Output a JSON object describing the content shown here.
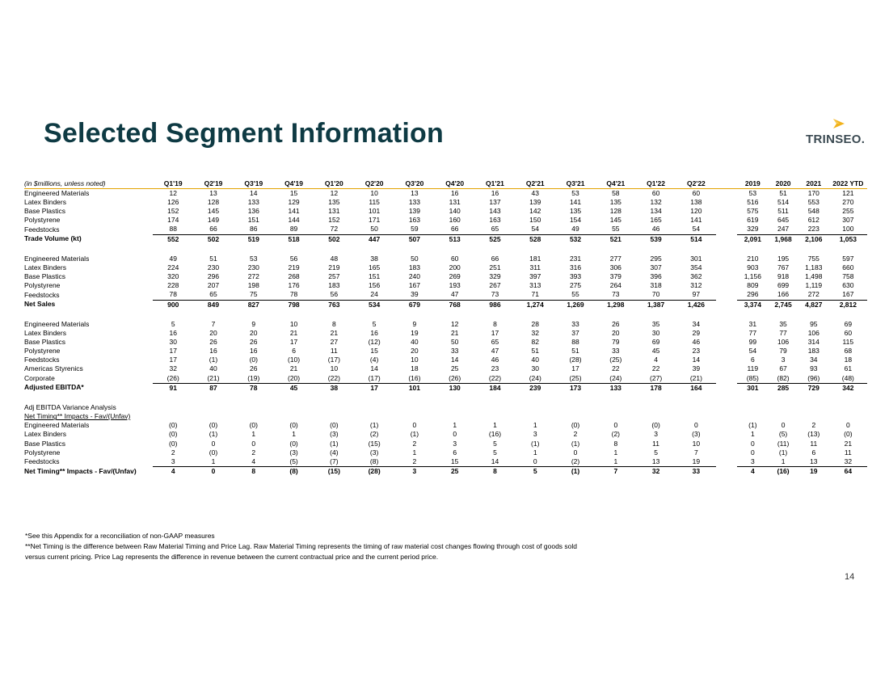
{
  "title": "Selected Segment Information",
  "logo_text": "TRINSEO.",
  "page_number": "14",
  "table": {
    "header_label": "(in $millions, unless noted)",
    "quarters": [
      "Q1'19",
      "Q2'19",
      "Q3'19",
      "Q4'19",
      "Q1'20",
      "Q2'20",
      "Q3'20",
      "Q4'20",
      "Q1'21",
      "Q2'21",
      "Q3'21",
      "Q4'21",
      "Q1'22",
      "Q2'22"
    ],
    "years": [
      "2019",
      "2020",
      "2021",
      "2022 YTD"
    ],
    "sections": [
      {
        "rows": [
          {
            "label": "Engineered Materials",
            "q": [
              "12",
              "13",
              "14",
              "15",
              "12",
              "10",
              "13",
              "16",
              "16",
              "43",
              "53",
              "58",
              "60",
              "60"
            ],
            "y": [
              "53",
              "51",
              "170",
              "121"
            ]
          },
          {
            "label": "Latex Binders",
            "q": [
              "126",
              "128",
              "133",
              "129",
              "135",
              "115",
              "133",
              "131",
              "137",
              "139",
              "141",
              "135",
              "132",
              "138"
            ],
            "y": [
              "516",
              "514",
              "553",
              "270"
            ]
          },
          {
            "label": "Base Plastics",
            "q": [
              "152",
              "145",
              "136",
              "141",
              "131",
              "101",
              "139",
              "140",
              "143",
              "142",
              "135",
              "128",
              "134",
              "120"
            ],
            "y": [
              "575",
              "511",
              "548",
              "255"
            ]
          },
          {
            "label": "Polystyrene",
            "q": [
              "174",
              "149",
              "151",
              "144",
              "152",
              "171",
              "163",
              "160",
              "163",
              "150",
              "154",
              "145",
              "165",
              "141"
            ],
            "y": [
              "619",
              "645",
              "612",
              "307"
            ]
          },
          {
            "label": "Feedstocks",
            "q": [
              "88",
              "66",
              "86",
              "89",
              "72",
              "50",
              "59",
              "66",
              "65",
              "54",
              "49",
              "55",
              "46",
              "54"
            ],
            "y": [
              "329",
              "247",
              "223",
              "100"
            ]
          }
        ],
        "total": {
          "label": "Trade Volume (kt)",
          "q": [
            "552",
            "502",
            "519",
            "518",
            "502",
            "447",
            "507",
            "513",
            "525",
            "528",
            "532",
            "521",
            "539",
            "514"
          ],
          "y": [
            "2,091",
            "1,968",
            "2,106",
            "1,053"
          ]
        }
      },
      {
        "rows": [
          {
            "label": "Engineered Materials",
            "q": [
              "49",
              "51",
              "53",
              "56",
              "48",
              "38",
              "50",
              "60",
              "66",
              "181",
              "231",
              "277",
              "295",
              "301"
            ],
            "y": [
              "210",
              "195",
              "755",
              "597"
            ]
          },
          {
            "label": "Latex Binders",
            "q": [
              "224",
              "230",
              "230",
              "219",
              "219",
              "165",
              "183",
              "200",
              "251",
              "311",
              "316",
              "306",
              "307",
              "354"
            ],
            "y": [
              "903",
              "767",
              "1,183",
              "660"
            ]
          },
          {
            "label": "Base Plastics",
            "q": [
              "320",
              "296",
              "272",
              "268",
              "257",
              "151",
              "240",
              "269",
              "329",
              "397",
              "393",
              "379",
              "396",
              "362"
            ],
            "y": [
              "1,156",
              "918",
              "1,498",
              "758"
            ]
          },
          {
            "label": "Polystyrene",
            "q": [
              "228",
              "207",
              "198",
              "176",
              "183",
              "156",
              "167",
              "193",
              "267",
              "313",
              "275",
              "264",
              "318",
              "312"
            ],
            "y": [
              "809",
              "699",
              "1,119",
              "630"
            ]
          },
          {
            "label": "Feedstocks",
            "q": [
              "78",
              "65",
              "75",
              "78",
              "56",
              "24",
              "39",
              "47",
              "73",
              "71",
              "55",
              "73",
              "70",
              "97"
            ],
            "y": [
              "296",
              "166",
              "272",
              "167"
            ]
          }
        ],
        "total": {
          "label": "Net Sales",
          "q": [
            "900",
            "849",
            "827",
            "798",
            "763",
            "534",
            "679",
            "768",
            "986",
            "1,274",
            "1,269",
            "1,298",
            "1,387",
            "1,426"
          ],
          "y": [
            "3,374",
            "2,745",
            "4,827",
            "2,812"
          ]
        }
      },
      {
        "rows": [
          {
            "label": "Engineered Materials",
            "q": [
              "5",
              "7",
              "9",
              "10",
              "8",
              "5",
              "9",
              "12",
              "8",
              "28",
              "33",
              "26",
              "35",
              "34"
            ],
            "y": [
              "31",
              "35",
              "95",
              "69"
            ]
          },
          {
            "label": "Latex Binders",
            "q": [
              "16",
              "20",
              "20",
              "21",
              "21",
              "16",
              "19",
              "21",
              "17",
              "32",
              "37",
              "20",
              "30",
              "29"
            ],
            "y": [
              "77",
              "77",
              "106",
              "60"
            ]
          },
          {
            "label": "Base Plastics",
            "q": [
              "30",
              "26",
              "26",
              "17",
              "27",
              "(12)",
              "40",
              "50",
              "65",
              "82",
              "88",
              "79",
              "69",
              "46"
            ],
            "y": [
              "99",
              "106",
              "314",
              "115"
            ]
          },
          {
            "label": "Polystyrene",
            "q": [
              "17",
              "16",
              "16",
              "6",
              "11",
              "15",
              "20",
              "33",
              "47",
              "51",
              "51",
              "33",
              "45",
              "23"
            ],
            "y": [
              "54",
              "79",
              "183",
              "68"
            ]
          },
          {
            "label": "Feedstocks",
            "q": [
              "17",
              "(1)",
              "(0)",
              "(10)",
              "(17)",
              "(4)",
              "10",
              "14",
              "46",
              "40",
              "(28)",
              "(25)",
              "4",
              "14"
            ],
            "y": [
              "6",
              "3",
              "34",
              "18"
            ]
          },
          {
            "label": "Americas Styrenics",
            "q": [
              "32",
              "40",
              "26",
              "21",
              "10",
              "14",
              "18",
              "25",
              "23",
              "30",
              "17",
              "22",
              "22",
              "39"
            ],
            "y": [
              "119",
              "67",
              "93",
              "61"
            ]
          },
          {
            "label": "Corporate",
            "q": [
              "(26)",
              "(21)",
              "(19)",
              "(20)",
              "(22)",
              "(17)",
              "(16)",
              "(26)",
              "(22)",
              "(24)",
              "(25)",
              "(24)",
              "(27)",
              "(21)"
            ],
            "y": [
              "(85)",
              "(82)",
              "(96)",
              "(48)"
            ]
          }
        ],
        "total": {
          "label": "Adjusted EBITDA*",
          "q": [
            "91",
            "87",
            "78",
            "45",
            "38",
            "17",
            "101",
            "130",
            "184",
            "239",
            "173",
            "133",
            "178",
            "164"
          ],
          "y": [
            "301",
            "285",
            "729",
            "342"
          ]
        }
      },
      {
        "pre_labels": [
          "Adj EBITDA Variance Analysis"
        ],
        "sub_label": "Net Timing** Impacts - Fav/(Unfav)",
        "rows": [
          {
            "label": "Engineered Materials",
            "q": [
              "(0)",
              "(0)",
              "(0)",
              "(0)",
              "(0)",
              "(1)",
              "0",
              "1",
              "1",
              "1",
              "(0)",
              "0",
              "(0)",
              "0"
            ],
            "y": [
              "(1)",
              "0",
              "2",
              "0"
            ]
          },
          {
            "label": "Latex Binders",
            "q": [
              "(0)",
              "(1)",
              "1",
              "1",
              "(3)",
              "(2)",
              "(1)",
              "0",
              "(16)",
              "3",
              "2",
              "(2)",
              "3",
              "(3)"
            ],
            "y": [
              "1",
              "(5)",
              "(13)",
              "(0)"
            ]
          },
          {
            "label": "Base Plastics",
            "q": [
              "(0)",
              "0",
              "0",
              "(0)",
              "(1)",
              "(15)",
              "2",
              "3",
              "5",
              "(1)",
              "(1)",
              "8",
              "11",
              "10"
            ],
            "y": [
              "0",
              "(11)",
              "11",
              "21"
            ]
          },
          {
            "label": "Polystyrene",
            "q": [
              "2",
              "(0)",
              "2",
              "(3)",
              "(4)",
              "(3)",
              "1",
              "6",
              "5",
              "1",
              "0",
              "1",
              "5",
              "7"
            ],
            "y": [
              "0",
              "(1)",
              "6",
              "11"
            ]
          },
          {
            "label": "Feedstocks",
            "q": [
              "3",
              "1",
              "4",
              "(5)",
              "(7)",
              "(8)",
              "2",
              "15",
              "14",
              "0",
              "(2)",
              "1",
              "13",
              "19"
            ],
            "y": [
              "3",
              "1",
              "13",
              "32"
            ]
          }
        ],
        "total": {
          "label": "Net Timing** Impacts - Fav/(Unfav)",
          "q": [
            "4",
            "0",
            "8",
            "(8)",
            "(15)",
            "(28)",
            "3",
            "25",
            "8",
            "5",
            "(1)",
            "7",
            "32",
            "33"
          ],
          "y": [
            "4",
            "(16)",
            "19",
            "64"
          ]
        }
      }
    ]
  },
  "notes": [
    "*See this Appendix for a reconciliation of non-GAAP measures",
    "**Net Timing is the difference between Raw Material Timing and Price Lag. Raw Material Timing represents the timing of raw material cost changes flowing through cost of goods sold",
    "versus current pricing.  Price Lag represents the difference in revenue between the current contractual price and the current period price."
  ],
  "colors": {
    "title": "#0e3a43",
    "accent": "#e3a300",
    "logo_text": "#3b4a52"
  }
}
